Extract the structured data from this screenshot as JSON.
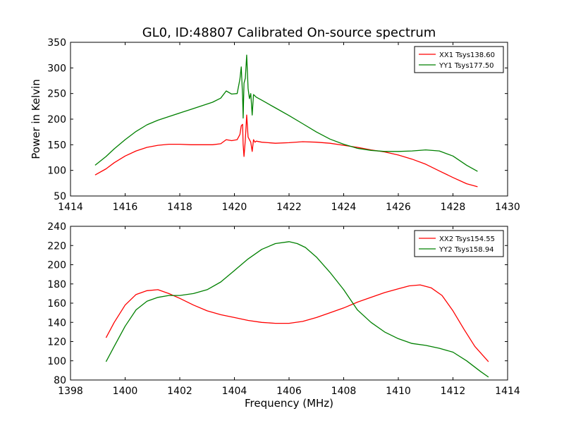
{
  "figure": {
    "title": "GL0, ID:48807 Calibrated On-source spectrum",
    "ylabel": "Power in Kelvin",
    "xlabel": "Frequency (MHz)"
  },
  "colors": {
    "red": "#ff0000",
    "green": "#008000"
  },
  "chart_data": [
    {
      "type": "line",
      "title": "GL0, ID:48807 Calibrated On-source spectrum",
      "xlabel": "",
      "ylabel": "Power in Kelvin",
      "xlim": [
        1414,
        1430
      ],
      "ylim": [
        50,
        350
      ],
      "xticks": [
        1414,
        1416,
        1418,
        1420,
        1422,
        1424,
        1426,
        1428,
        1430
      ],
      "yticks": [
        50,
        100,
        150,
        200,
        250,
        300,
        350
      ],
      "grid": false,
      "legend_position": "top-right",
      "series": [
        {
          "name": "XX1 Tsys138.60",
          "color": "#ff0000",
          "x": [
            1414.9,
            1415.3,
            1415.6,
            1416.0,
            1416.4,
            1416.8,
            1417.2,
            1417.6,
            1418.0,
            1418.4,
            1418.8,
            1419.2,
            1419.5,
            1419.7,
            1419.9,
            1420.1,
            1420.2,
            1420.25,
            1420.3,
            1420.32,
            1420.35,
            1420.4,
            1420.45,
            1420.5,
            1420.6,
            1420.65,
            1420.7,
            1420.75,
            1420.8,
            1421.0,
            1421.5,
            1422.0,
            1422.5,
            1423.0,
            1423.5,
            1424.0,
            1424.5,
            1425.0,
            1425.5,
            1426.0,
            1426.5,
            1427.0,
            1427.5,
            1428.0,
            1428.5,
            1428.9
          ],
          "y": [
            91,
            103,
            115,
            128,
            138,
            145,
            149,
            151,
            151,
            150,
            150,
            150,
            152,
            160,
            158,
            160,
            170,
            187,
            190,
            150,
            127,
            160,
            208,
            165,
            155,
            137,
            160,
            155,
            157,
            155,
            153,
            154,
            156,
            155,
            153,
            149,
            145,
            140,
            136,
            130,
            122,
            112,
            99,
            86,
            74,
            68
          ]
        },
        {
          "name": "YY1 Tsys177.50",
          "color": "#008000",
          "x": [
            1414.9,
            1415.3,
            1415.6,
            1416.0,
            1416.4,
            1416.8,
            1417.2,
            1417.6,
            1418.0,
            1418.4,
            1418.8,
            1419.2,
            1419.5,
            1419.7,
            1419.9,
            1420.1,
            1420.2,
            1420.25,
            1420.3,
            1420.32,
            1420.35,
            1420.4,
            1420.45,
            1420.5,
            1420.55,
            1420.6,
            1420.65,
            1420.7,
            1420.8,
            1421.0,
            1421.5,
            1422.0,
            1422.5,
            1423.0,
            1423.5,
            1424.0,
            1424.5,
            1425.0,
            1425.5,
            1426.0,
            1426.5,
            1427.0,
            1427.5,
            1428.0,
            1428.5,
            1428.9
          ],
          "y": [
            110,
            127,
            142,
            160,
            176,
            189,
            198,
            205,
            212,
            219,
            226,
            233,
            241,
            255,
            249,
            250,
            278,
            302,
            245,
            202,
            270,
            280,
            325,
            260,
            240,
            250,
            208,
            248,
            243,
            237,
            222,
            207,
            191,
            175,
            161,
            151,
            143,
            139,
            137,
            137,
            138,
            140,
            138,
            128,
            110,
            98
          ]
        }
      ]
    },
    {
      "type": "line",
      "title": "",
      "xlabel": "Frequency (MHz)",
      "ylabel": "",
      "xlim": [
        1398,
        1414
      ],
      "ylim": [
        80,
        240
      ],
      "xticks": [
        1398,
        1400,
        1402,
        1404,
        1406,
        1408,
        1410,
        1412,
        1414
      ],
      "yticks": [
        80,
        100,
        120,
        140,
        160,
        180,
        200,
        220,
        240
      ],
      "grid": false,
      "legend_position": "top-right",
      "series": [
        {
          "name": "XX2 Tsys154.55",
          "color": "#ff0000",
          "x": [
            1399.3,
            1399.6,
            1400.0,
            1400.4,
            1400.8,
            1401.2,
            1401.6,
            1402.0,
            1402.5,
            1403.0,
            1403.5,
            1404.0,
            1404.5,
            1405.0,
            1405.5,
            1406.0,
            1406.5,
            1407.0,
            1407.5,
            1408.0,
            1408.5,
            1409.0,
            1409.5,
            1410.0,
            1410.4,
            1410.8,
            1411.2,
            1411.6,
            1412.0,
            1412.4,
            1412.8,
            1413.3
          ],
          "y": [
            124,
            140,
            158,
            169,
            173,
            174,
            170,
            165,
            158,
            152,
            148,
            145,
            142,
            140,
            139,
            139,
            141,
            145,
            150,
            155,
            161,
            166,
            171,
            175,
            178,
            179,
            176,
            168,
            152,
            133,
            115,
            99
          ]
        },
        {
          "name": "YY2 Tsys158.94",
          "color": "#008000",
          "x": [
            1399.3,
            1399.6,
            1400.0,
            1400.4,
            1400.8,
            1401.2,
            1401.6,
            1402.0,
            1402.5,
            1403.0,
            1403.5,
            1404.0,
            1404.5,
            1405.0,
            1405.5,
            1406.0,
            1406.3,
            1406.6,
            1407.0,
            1407.5,
            1408.0,
            1408.5,
            1409.0,
            1409.5,
            1410.0,
            1410.5,
            1411.0,
            1411.5,
            1412.0,
            1412.5,
            1413.0,
            1413.3
          ],
          "y": [
            99,
            115,
            136,
            153,
            162,
            166,
            168,
            168,
            170,
            174,
            182,
            194,
            206,
            216,
            222,
            224,
            222,
            218,
            208,
            192,
            174,
            153,
            140,
            130,
            123,
            118,
            116,
            113,
            109,
            100,
            89,
            83
          ]
        }
      ]
    }
  ]
}
